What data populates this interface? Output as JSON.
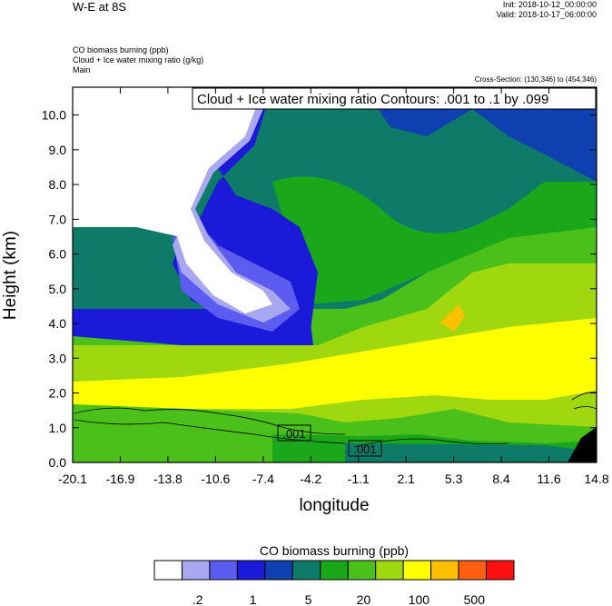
{
  "header": {
    "title": "W-E at 8S",
    "init": "Init: 2018-10-12_00:00:00",
    "valid": "Valid: 2018-10-17_06:00:00",
    "fields": [
      "CO biomass burning   (ppb)",
      "Cloud + Ice water mixing ratio   (g/kg)",
      "Main"
    ],
    "cross_section": "Cross-Section: (130,346) to (454,346)"
  },
  "chart_data": {
    "type": "heatmap",
    "title": "",
    "contour_label": "Cloud + Ice water mixing ratio Contours: .001 to .1 by .099",
    "xlabel": "longitude",
    "ylabel": "Height (km)",
    "xlim": [
      -20.1,
      14.8
    ],
    "ylim": [
      0.0,
      10.8
    ],
    "xticks": [
      "-20.1",
      "-16.9",
      "-13.8",
      "-10.6",
      "-7.4",
      "-4.2",
      "-1.1",
      "2.1",
      "5.3",
      "8.4",
      "11.6",
      "14.8"
    ],
    "yticks": [
      "0.0",
      "1.0",
      "2.0",
      "3.0",
      "4.0",
      "5.0",
      "6.0",
      "7.0",
      "8.0",
      "9.0",
      "10.0"
    ],
    "contour_labels": [
      ".001",
      ".001"
    ],
    "legend": {
      "title": "CO biomass burning  (ppb)",
      "colors": [
        "#ffffff",
        "#a8a8f0",
        "#5c5cf0",
        "#1a1ad8",
        "#0f40b0",
        "#0e7a68",
        "#1aa81a",
        "#4cc01a",
        "#a0d810",
        "#ffff00",
        "#ffc000",
        "#ff6010",
        "#ff1010"
      ],
      "labels": [
        ".2",
        "1",
        "5",
        "20",
        "100",
        "500"
      ]
    }
  }
}
